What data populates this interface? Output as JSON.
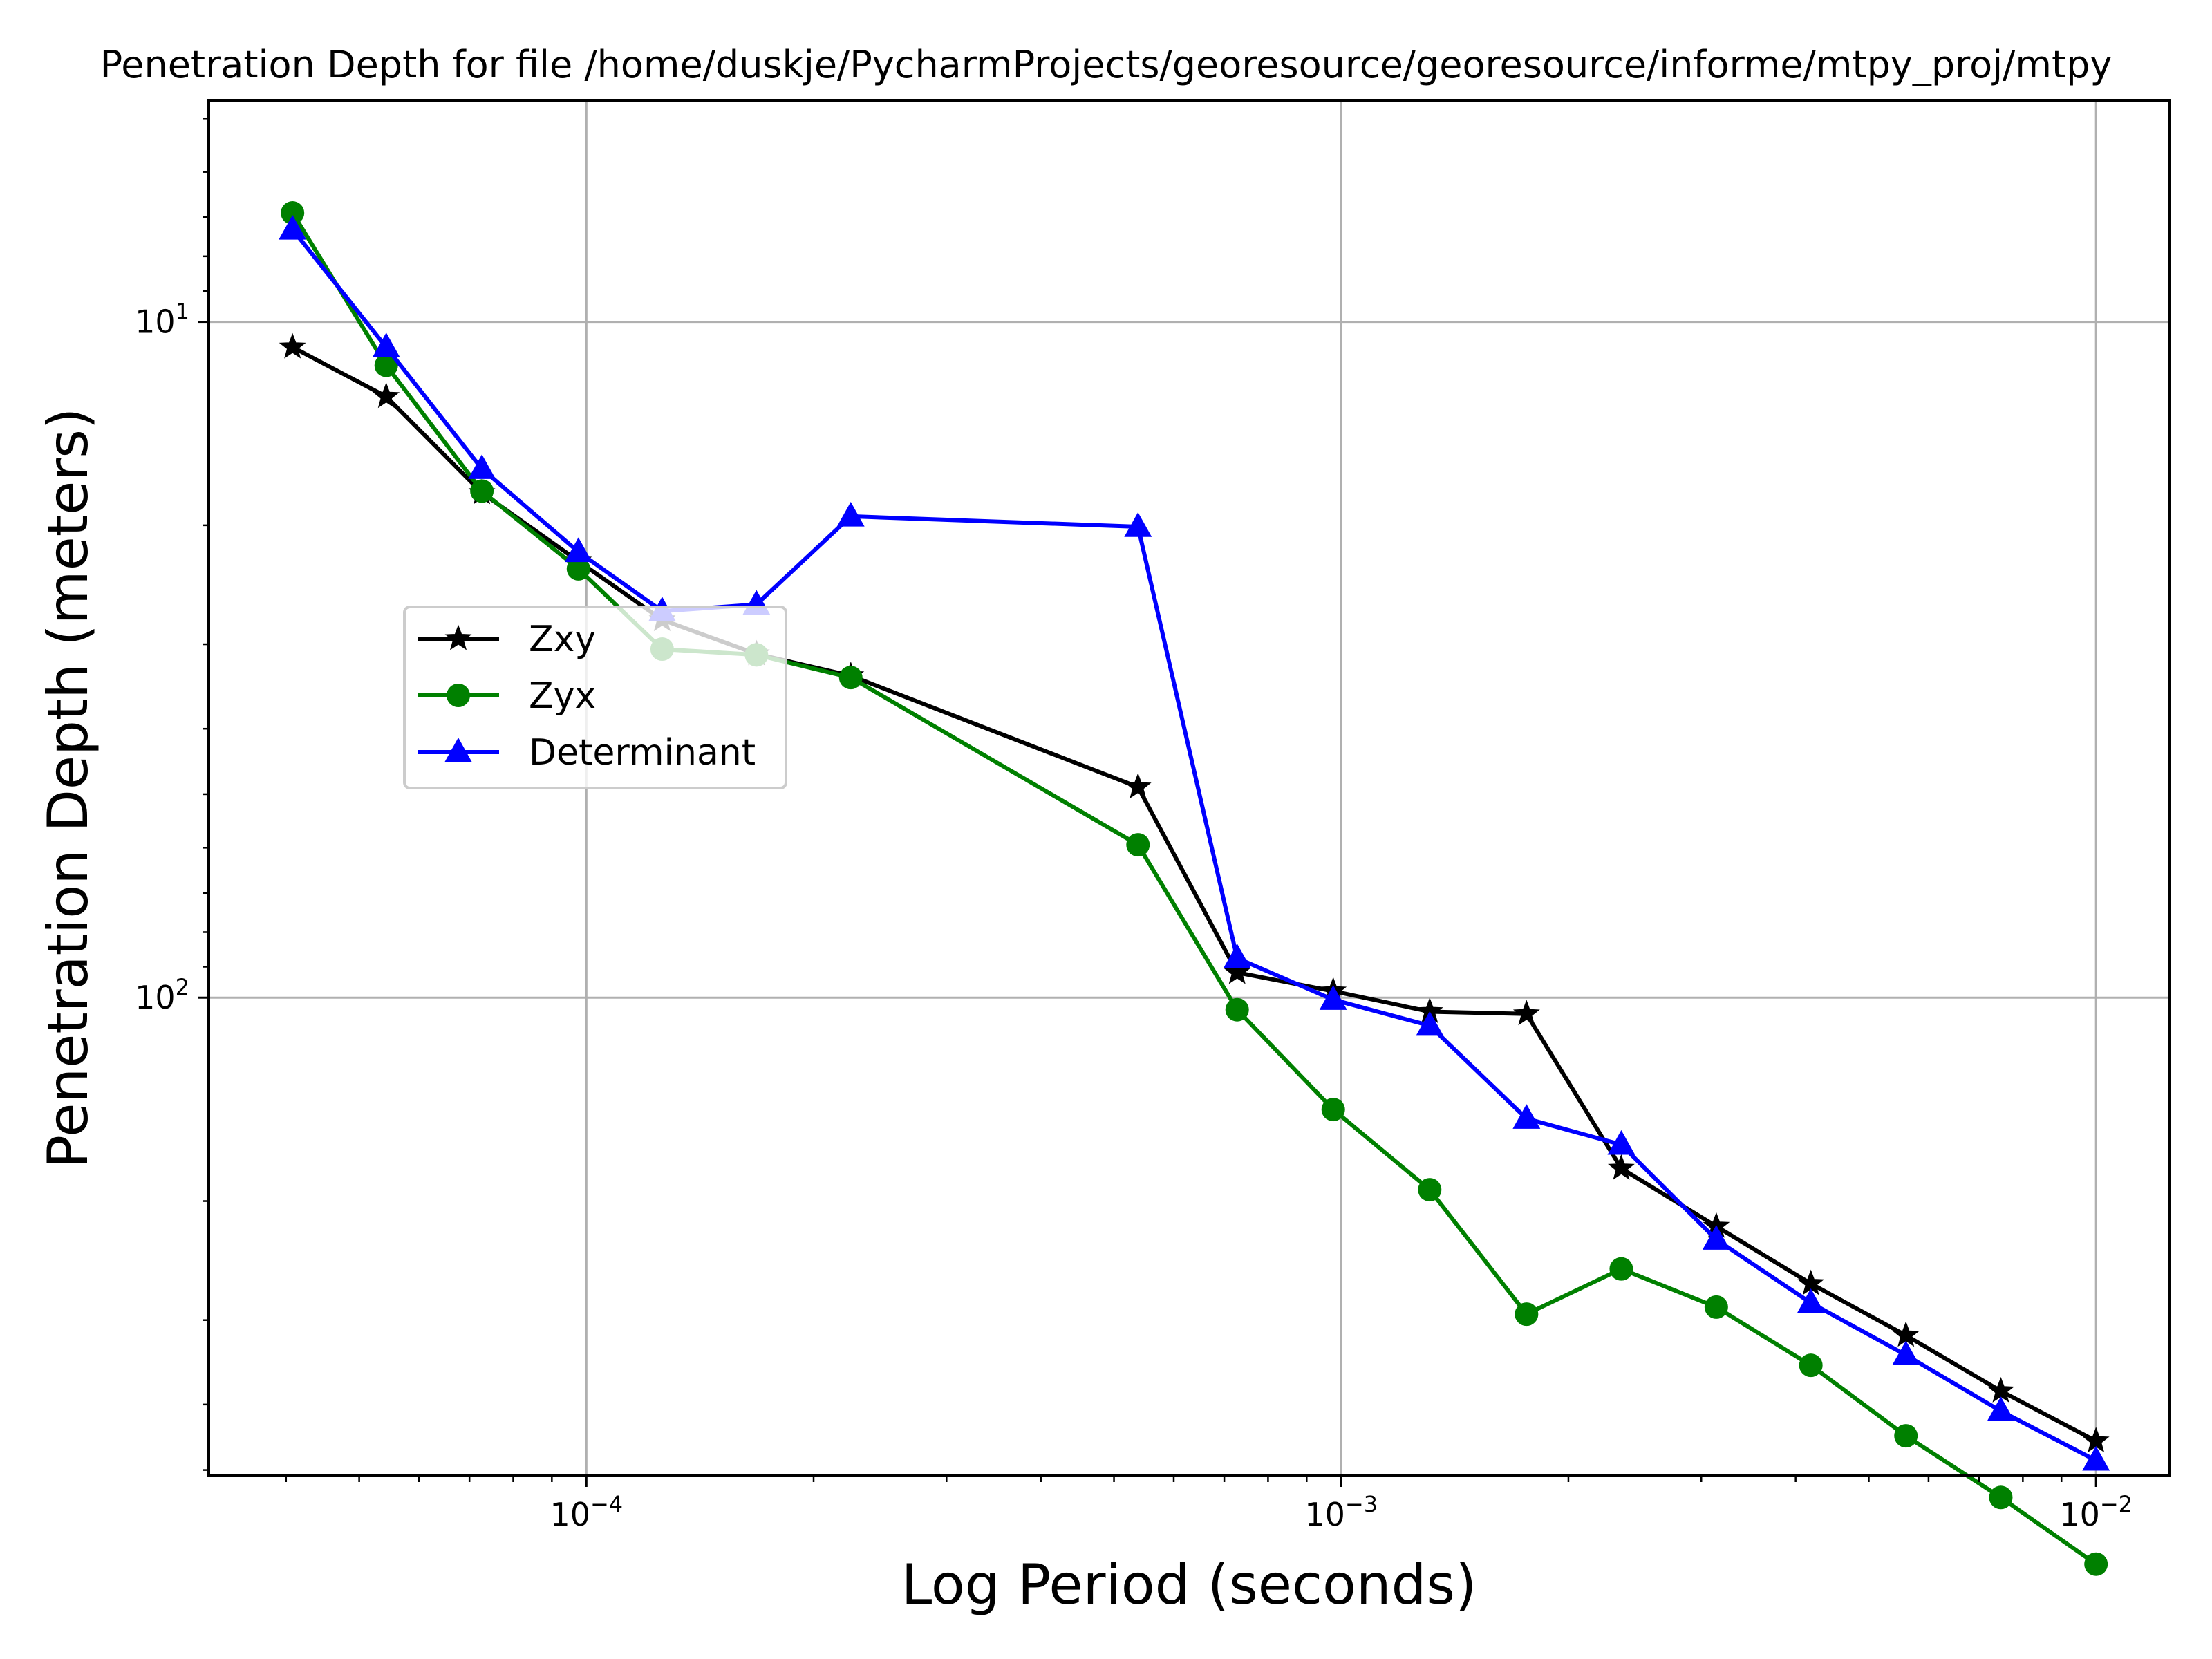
{
  "chart_data": {
    "type": "line",
    "title": "Penetration Depth for file /home/duskje/PycharmProjects/georesource/georesource/informe/mtpy_proj/mtpy",
    "xlabel": "Log Period (seconds)",
    "ylabel": "Penetration Depth (meters)",
    "xscale": "log",
    "yscale": "log",
    "yaxis_inverted": true,
    "xlim": [
      3.16e-05,
      0.0125
    ],
    "ylim": [
      4.7,
      510
    ],
    "grid": "major",
    "legend_position": "center-left",
    "x_tick_labels": [
      {
        "base": "10",
        "exp": "−4",
        "value": 0.0001
      },
      {
        "base": "10",
        "exp": "−3",
        "value": 0.001
      },
      {
        "base": "10",
        "exp": "−2",
        "value": 0.01
      }
    ],
    "y_tick_labels": [
      {
        "base": "10",
        "exp": "1",
        "value": 10
      },
      {
        "base": "10",
        "exp": "2",
        "value": 100
      }
    ],
    "x": [
      4.08e-05,
      5.43e-05,
      7.27e-05,
      9.76e-05,
      0.000126,
      0.000168,
      0.000224,
      0.000538,
      0.000728,
      0.000976,
      0.00131,
      0.00176,
      0.00235,
      0.00314,
      0.00419,
      0.0056,
      0.00748,
      0.01
    ],
    "series": [
      {
        "name": "Zxy",
        "color": "#000000",
        "marker": "star",
        "values": [
          10.9,
          12.9,
          17.9,
          22.6,
          27.6,
          31.0,
          33.4,
          48.8,
          91.8,
          97.8,
          104.9,
          105.7,
          178.9,
          218.0,
          265.0,
          316.0,
          382.0,
          453.0
        ]
      },
      {
        "name": "Zyx",
        "color": "#008000",
        "marker": "circle",
        "values": [
          6.9,
          11.6,
          17.8,
          23.2,
          30.5,
          31.1,
          33.6,
          59.4,
          104.2,
          146.4,
          192.4,
          294.0,
          252.0,
          287.0,
          350.0,
          445.0,
          549.0,
          689.0
        ]
      },
      {
        "name": "Determinant",
        "color": "#0000ff",
        "marker": "triangle",
        "values": [
          7.3,
          10.9,
          16.5,
          21.9,
          26.8,
          26.2,
          19.4,
          20.1,
          87.4,
          100.7,
          110.0,
          151.0,
          165.0,
          228.0,
          283.0,
          338.0,
          409.0,
          484.0
        ]
      }
    ]
  }
}
